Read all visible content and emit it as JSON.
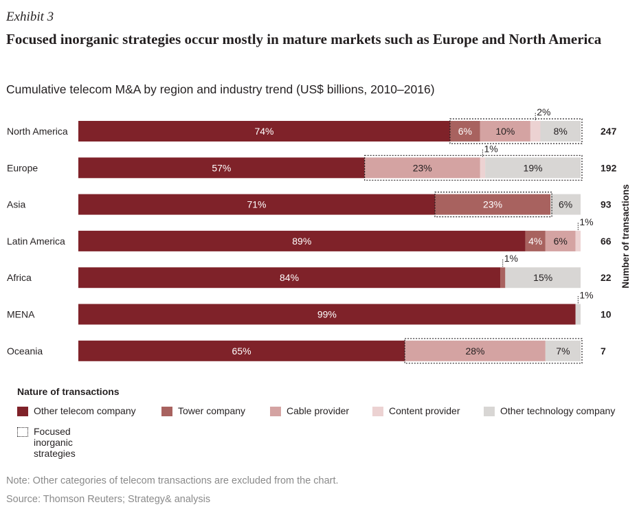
{
  "header": {
    "exhibit": "Exhibit 3",
    "title": "Focused inorganic strategies occur mostly in mature markets such as Europe and North America",
    "subtitle": "Cumulative telecom M&A by region and industry trend (US$ billions, 2010–2016)"
  },
  "chart_data": {
    "type": "bar",
    "orientation": "horizontal",
    "stacked": true,
    "categories": [
      "North America",
      "Europe",
      "Asia",
      "Latin America",
      "Africa",
      "MENA",
      "Oceania"
    ],
    "series": [
      {
        "name": "Other telecom company",
        "color": "#7f2229",
        "values": [
          74,
          57,
          71,
          89,
          84,
          99,
          65
        ]
      },
      {
        "name": "Tower company",
        "color": "#a8625f",
        "values": [
          6,
          0,
          23,
          4,
          1,
          0,
          0
        ]
      },
      {
        "name": "Cable provider",
        "color": "#d4a3a2",
        "values": [
          10,
          23,
          0,
          6,
          0,
          0,
          28
        ]
      },
      {
        "name": "Content provider",
        "color": "#ecd2d2",
        "values": [
          2,
          1,
          0,
          1,
          0,
          0,
          0
        ]
      },
      {
        "name": "Other technology company",
        "color": "#d8d6d4",
        "values": [
          8,
          19,
          6,
          0,
          15,
          1,
          7
        ]
      }
    ],
    "labels": [
      [
        "74%",
        "6%",
        "10%",
        "2%",
        "8%"
      ],
      [
        "57%",
        "",
        "23%",
        "1%",
        "19%"
      ],
      [
        "71%",
        "23%",
        "",
        "",
        "6%"
      ],
      [
        "89%",
        "4%",
        "6%",
        "1%",
        ""
      ],
      [
        "84%",
        "1%",
        "",
        "",
        "15%"
      ],
      [
        "99%",
        "",
        "",
        "",
        "1%"
      ],
      [
        "65%",
        "",
        "28%",
        "",
        "7%"
      ]
    ],
    "transactions": [
      247,
      192,
      93,
      66,
      22,
      10,
      7
    ],
    "transactions_label": "Number of transactions",
    "focused_inorganic": [
      {
        "row": 0,
        "from": 74,
        "to": 100
      },
      {
        "row": 1,
        "from": 57,
        "to": 100
      },
      {
        "row": 2,
        "from": 71,
        "to": 94
      },
      {
        "row": 6,
        "from": 65,
        "to": 100
      }
    ],
    "xlim": [
      0,
      100
    ],
    "grid": false
  },
  "legend": {
    "title": "Nature of transactions",
    "items": [
      {
        "label": "Other telecom company",
        "color": "#7f2229"
      },
      {
        "label": "Tower company",
        "color": "#a8625f"
      },
      {
        "label": "Cable provider",
        "color": "#d4a3a2"
      },
      {
        "label": "Content provider",
        "color": "#ecd2d2"
      },
      {
        "label": "Other technology company",
        "color": "#d8d6d4"
      }
    ],
    "focused_label": "Focused inorganic strategies"
  },
  "footer": {
    "note": "Note: Other categories of telecom transactions are excluded from the chart.",
    "source": "Source: Thomson Reuters; Strategy& analysis"
  }
}
